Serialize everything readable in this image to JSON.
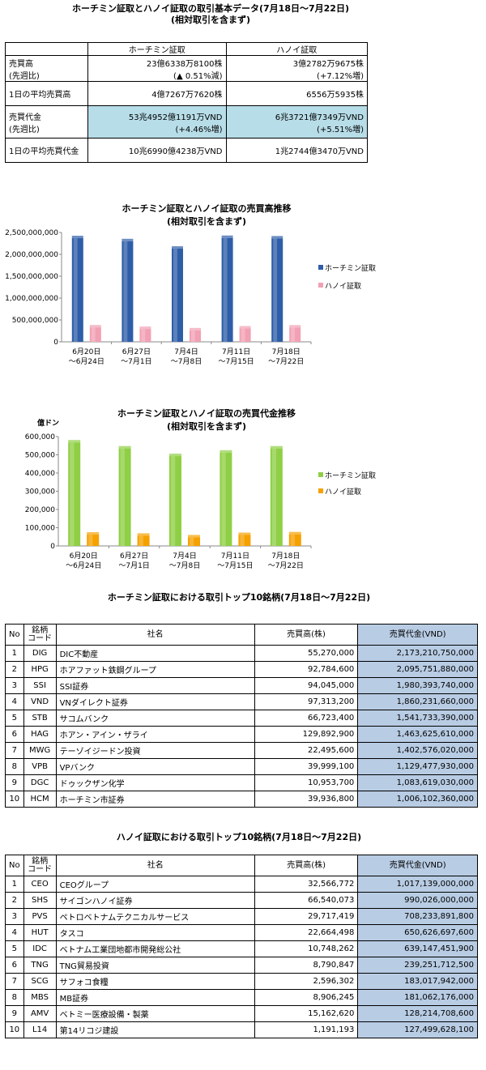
{
  "summary": {
    "title": "ホーチミン証取とハノイ証取の取引基本データ(7月18日～7月22日)",
    "subtitle": "(相対取引を含まず)",
    "col_hcm": "ホーチミン証取",
    "col_hn": "ハノイ証取",
    "rows": [
      {
        "label": "売買高",
        "label2": "(先週比)",
        "hcm": "23億6338万8100株",
        "hcm2": "(▲ 0.51%減)",
        "hn": "3億2782万9675株",
        "hn2": "(+7.12%増)"
      },
      {
        "label": "1日の平均売買高",
        "hcm": "4億7267万7620株",
        "hn": "6556万5935株"
      },
      {
        "label": "売買代金",
        "label2": "(先週比)",
        "hcm": "53兆4952億1191万VND",
        "hcm2": "(+4.46%増)",
        "hn": "6兆3721億7349万VND",
        "hn2": "(+5.51%増)"
      },
      {
        "label": "1日の平均売買代金",
        "hcm": "10兆6990億4238万VND",
        "hn": "1兆2744億3470万VND"
      }
    ]
  },
  "chart_volume": {
    "title": "ホーチミン証取とハノイ証取の売買高推移",
    "subtitle": "(相対取引を含まず)",
    "legend_hcm": "ホーチミン証取",
    "legend_hn": "ハノイ証取",
    "ytick_labels": [
      "0",
      "500,000,000",
      "1,000,000,000",
      "1,500,000,000",
      "2,000,000,000",
      "2,500,000,000"
    ]
  },
  "chart_value": {
    "title": "ホーチミン証取とハノイ証取の売買代金推移",
    "subtitle": "(相対取引を含まず)",
    "unit": "億ドン",
    "legend_hcm": "ホーチミン証取",
    "legend_hn": "ハノイ証取",
    "ytick_labels": [
      "0",
      "100,000",
      "200,000",
      "300,000",
      "400,000",
      "500,000",
      "600,000"
    ]
  },
  "chart_data": [
    {
      "type": "bar",
      "title": "ホーチミン証取とハノイ証取の売買高推移",
      "subtitle": "(相対取引を含まず)",
      "categories": [
        "6月20日～6月24日",
        "6月27日～7月1日",
        "7月4日～7月8日",
        "7月11日～7月15日",
        "7月18日～7月22日"
      ],
      "cat_line1": [
        "6月20日",
        "6月27日",
        "7月4日",
        "7月11日",
        "7月18日"
      ],
      "cat_line2": [
        "～6月24日",
        "～7月1日",
        "～7月8日",
        "～7月15日",
        "～7月22日"
      ],
      "series": [
        {
          "name": "ホーチミン証取",
          "color": "#2f5ea8",
          "values": [
            2370000000,
            2300000000,
            2130000000,
            2375000000,
            2363388100
          ]
        },
        {
          "name": "ハノイ証取",
          "color": "#f2a0b4",
          "values": [
            330000000,
            295000000,
            262000000,
            306000000,
            327829675
          ]
        }
      ],
      "ylim": [
        0,
        2500000000
      ],
      "legend": "right"
    },
    {
      "type": "bar",
      "title": "ホーチミン証取とハノイ証取の売買代金推移",
      "subtitle": "(相対取引を含まず)",
      "ylabel": "億ドン",
      "categories": [
        "6月20日～6月24日",
        "6月27日～7月1日",
        "7月4日～7月8日",
        "7月11日～7月15日",
        "7月18日～7月22日"
      ],
      "cat_line1": [
        "6月20日",
        "6月27日",
        "7月4日",
        "7月11日",
        "7月18日"
      ],
      "cat_line2": [
        "～6月24日",
        "～7月1日",
        "～7月8日",
        "～7月15日",
        "～7月22日"
      ],
      "series": [
        {
          "name": "ホーチミン証取",
          "color": "#8fcf45",
          "values": [
            568000,
            535000,
            493000,
            512000,
            534952
          ]
        },
        {
          "name": "ハノイ証取",
          "color": "#f5a100",
          "values": [
            62000,
            56000,
            47000,
            60000,
            63721
          ]
        }
      ],
      "ylim": [
        0,
        600000
      ],
      "legend": "right"
    }
  ],
  "hcm_top": {
    "title": "ホーチミン証取における取引トップ10銘柄(7月18日～7月22日)",
    "headers": {
      "no": "No",
      "code1": "銘柄",
      "code2": "コード",
      "name": "社名",
      "volume": "売買高(株)",
      "value": "売買代金(VND)"
    },
    "rows": [
      {
        "no": "1",
        "code": "DIG",
        "name": "DIC不動産",
        "volume": "55,270,000",
        "value": "2,173,210,750,000"
      },
      {
        "no": "2",
        "code": "HPG",
        "name": "ホアファット鉄鋼グループ",
        "volume": "92,784,600",
        "value": "2,095,751,880,000"
      },
      {
        "no": "3",
        "code": "SSI",
        "name": "SSI証券",
        "volume": "94,045,000",
        "value": "1,980,393,740,000"
      },
      {
        "no": "4",
        "code": "VND",
        "name": "VNダイレクト証券",
        "volume": "97,313,200",
        "value": "1,860,231,660,000"
      },
      {
        "no": "5",
        "code": "STB",
        "name": "サコムバンク",
        "volume": "66,723,400",
        "value": "1,541,733,390,000"
      },
      {
        "no": "6",
        "code": "HAG",
        "name": "ホアン・アイン・ザライ",
        "volume": "129,892,900",
        "value": "1,463,625,610,000"
      },
      {
        "no": "7",
        "code": "MWG",
        "name": "テーゾイジードン投資",
        "volume": "22,495,600",
        "value": "1,402,576,020,000"
      },
      {
        "no": "8",
        "code": "VPB",
        "name": "VPバンク",
        "volume": "39,999,100",
        "value": "1,129,477,930,000"
      },
      {
        "no": "9",
        "code": "DGC",
        "name": "ドゥックザン化学",
        "volume": "10,953,700",
        "value": "1,083,619,030,000"
      },
      {
        "no": "10",
        "code": "HCM",
        "name": "ホーチミン市証券",
        "volume": "39,936,800",
        "value": "1,006,102,360,000"
      }
    ]
  },
  "hn_top": {
    "title": "ハノイ証取における取引トップ10銘柄(7月18日～7月22日)",
    "headers": {
      "no": "No",
      "code1": "銘柄",
      "code2": "コード",
      "name": "社名",
      "volume": "売買高(株)",
      "value": "売買代金(VND)"
    },
    "rows": [
      {
        "no": "1",
        "code": "CEO",
        "name": "CEOグループ",
        "volume": "32,566,772",
        "value": "1,017,139,000,000"
      },
      {
        "no": "2",
        "code": "SHS",
        "name": "サイゴンハノイ証券",
        "volume": "66,540,073",
        "value": "990,026,000,000"
      },
      {
        "no": "3",
        "code": "PVS",
        "name": "ペトロベトナムテクニカルサービス",
        "volume": "29,717,419",
        "value": "708,233,891,800"
      },
      {
        "no": "4",
        "code": "HUT",
        "name": "タスコ",
        "volume": "22,664,498",
        "value": "650,626,697,600"
      },
      {
        "no": "5",
        "code": "IDC",
        "name": "ベトナム工業団地都市開発総公社",
        "volume": "10,748,262",
        "value": "639,147,451,900"
      },
      {
        "no": "6",
        "code": "TNG",
        "name": "TNG貿易投資",
        "volume": "8,790,847",
        "value": "239,251,712,500"
      },
      {
        "no": "7",
        "code": "SCG",
        "name": "サフォコ食糧",
        "volume": "2,596,302",
        "value": "183,017,942,000"
      },
      {
        "no": "8",
        "code": "MBS",
        "name": "MB証券",
        "volume": "8,906,245",
        "value": "181,062,176,000"
      },
      {
        "no": "9",
        "code": "AMV",
        "name": "ベトミー医療設備・製薬",
        "volume": "15,162,620",
        "value": "128,214,708,600"
      },
      {
        "no": "10",
        "code": "L14",
        "name": "第14リコジ建設",
        "volume": "1,191,193",
        "value": "127,499,628,100"
      }
    ]
  }
}
